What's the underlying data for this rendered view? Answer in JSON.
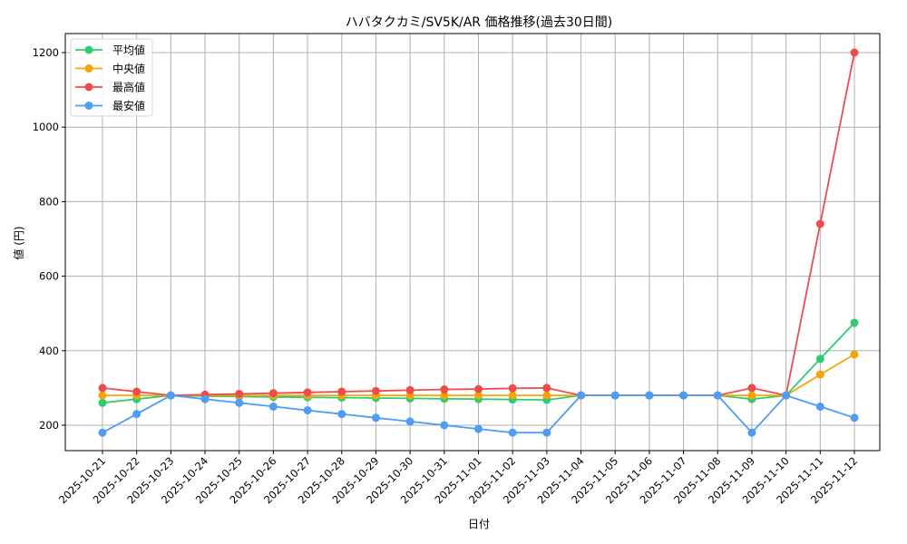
{
  "chart_data": {
    "type": "line",
    "title": "ハバタクカミ/SV5K/AR 価格推移(過去30日間)",
    "xlabel": "日付",
    "ylabel": "値 (円)",
    "ylim": [
      130,
      1250
    ],
    "yticks": [
      200,
      400,
      600,
      800,
      1000,
      1200
    ],
    "grid": true,
    "legend_position": "upper left",
    "categories": [
      "2025-10-21",
      "2025-10-22",
      "2025-10-23",
      "2025-10-24",
      "2025-10-25",
      "2025-10-26",
      "2025-10-27",
      "2025-10-28",
      "2025-10-29",
      "2025-10-30",
      "2025-10-31",
      "2025-11-01",
      "2025-11-02",
      "2025-11-03",
      "2025-11-04",
      "2025-11-05",
      "2025-11-06",
      "2025-11-07",
      "2025-11-08",
      "2025-11-09",
      "2025-11-10",
      "2025-11-11",
      "2025-11-12"
    ],
    "series": [
      {
        "name": "平均値",
        "color": "#2ecc71",
        "values": [
          260,
          270,
          280,
          278,
          277,
          276,
          275,
          274,
          273,
          272,
          271,
          270,
          269,
          268,
          280,
          280,
          280,
          280,
          280,
          270,
          280,
          378,
          475
        ]
      },
      {
        "name": "中央値",
        "color": "#f5a50a",
        "values": [
          280,
          280,
          280,
          280,
          280,
          280,
          280,
          280,
          280,
          280,
          280,
          280,
          280,
          280,
          280,
          280,
          280,
          280,
          280,
          280,
          280,
          336,
          390
        ]
      },
      {
        "name": "最高値",
        "color": "#f04b4b",
        "values": [
          300,
          290,
          280,
          282,
          284,
          286,
          288,
          290,
          292,
          294,
          296,
          297,
          299,
          300,
          280,
          280,
          280,
          280,
          280,
          300,
          280,
          740,
          1200
        ]
      },
      {
        "name": "最安値",
        "color": "#4d9cf5",
        "values": [
          180,
          230,
          280,
          270,
          260,
          250,
          240,
          230,
          220,
          210,
          200,
          190,
          180,
          180,
          280,
          280,
          280,
          280,
          280,
          180,
          280,
          250,
          220
        ]
      }
    ]
  }
}
